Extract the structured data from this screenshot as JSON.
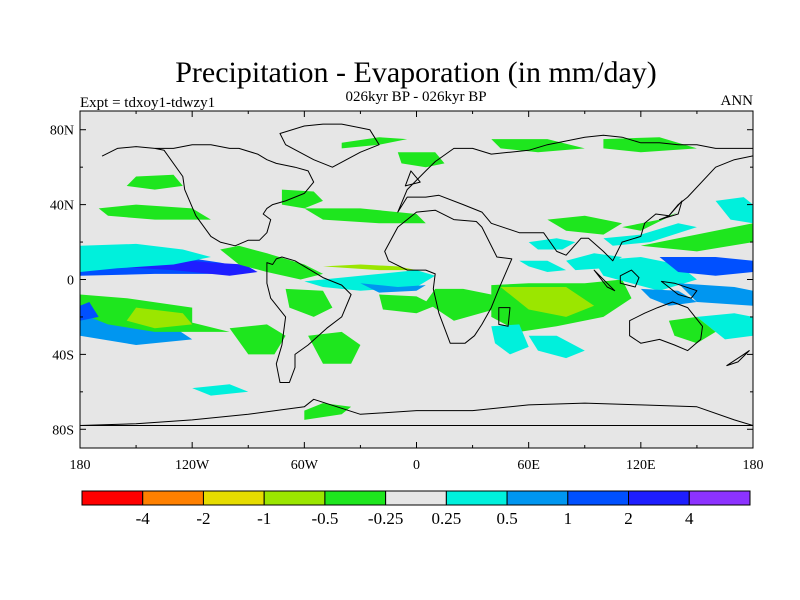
{
  "title": "Precipitation - Evaporation (in mm/day)",
  "left_subtitle": "Expt = tdxoy1-tdwzy1",
  "center_subtitle": "026kyr BP - 026kyr BP",
  "right_subtitle": "ANN",
  "colors": {
    "land": "#e6e6e6",
    "coast": "#000000",
    "bins": [
      "#ff0000",
      "#ff8000",
      "#e6dc00",
      "#9be600",
      "#1ee61e",
      "#e6e6e6",
      "#00f0dc",
      "#0096f0",
      "#0050ff",
      "#1e1eff",
      "#8c32ff"
    ]
  },
  "chart_data": {
    "type": "map",
    "projection": "cylindrical-equidistant",
    "variable": "Precipitation - Evaporation",
    "units": "mm/day",
    "lon_range": [
      -180,
      180
    ],
    "lat_range": [
      -90,
      90
    ],
    "x_ticks": [
      {
        "value": -180,
        "label": "180"
      },
      {
        "value": -120,
        "label": "120W"
      },
      {
        "value": -60,
        "label": "60W"
      },
      {
        "value": 0,
        "label": "0"
      },
      {
        "value": 60,
        "label": "60E"
      },
      {
        "value": 120,
        "label": "120E"
      },
      {
        "value": 180,
        "label": "180"
      }
    ],
    "y_ticks": [
      {
        "value": 80,
        "label": "80N"
      },
      {
        "value": 40,
        "label": "40N"
      },
      {
        "value": 0,
        "label": "0"
      },
      {
        "value": -40,
        "label": "40S"
      },
      {
        "value": -80,
        "label": "80S"
      }
    ],
    "colorbar": {
      "levels": [
        "-4",
        "-2",
        "-1",
        "-0.5",
        "-0.25",
        "0.25",
        "0.5",
        "1",
        "2",
        "4"
      ]
    },
    "regions": [
      {
        "lon": [
          -180,
          -145,
          -125,
          -105,
          -90,
          -110,
          -140,
          -180
        ],
        "lat": [
          14,
          15,
          12,
          9,
          6,
          3,
          3,
          2
        ],
        "bin": 8
      },
      {
        "lon": [
          -180,
          -130,
          -110,
          -92,
          -85,
          -100,
          -130,
          -180
        ],
        "lat": [
          12,
          11,
          9,
          8,
          4,
          2,
          5,
          8
        ],
        "bin": 9
      },
      {
        "lon": [
          -180,
          -150,
          -125,
          -110,
          -130,
          -160,
          -180
        ],
        "lat": [
          18,
          19,
          16,
          12,
          8,
          6,
          4
        ],
        "bin": 6
      },
      {
        "lon": [
          -180,
          -160,
          -135,
          -120,
          -150,
          -180
        ],
        "lat": [
          -10,
          -14,
          -22,
          -32,
          -35,
          -30
        ],
        "bin": 7
      },
      {
        "lon": [
          -180,
          -155,
          -120,
          -120,
          -100,
          -140,
          -165,
          -180
        ],
        "lat": [
          -8,
          -10,
          -15,
          -23,
          -28,
          -28,
          -24,
          -18
        ],
        "bin": 4
      },
      {
        "lon": [
          -150,
          -125,
          -120,
          -140,
          -155
        ],
        "lat": [
          -15,
          -18,
          -24,
          -26,
          -22
        ],
        "bin": 3
      },
      {
        "lon": [
          -105,
          -95,
          -80,
          -60,
          -50,
          -62,
          -80,
          -95
        ],
        "lat": [
          16,
          18,
          14,
          8,
          3,
          0,
          4,
          8
        ],
        "bin": 4
      },
      {
        "lon": [
          -100,
          -80,
          -70,
          -76,
          -90
        ],
        "lat": [
          -26,
          -24,
          -30,
          -40,
          -40
        ],
        "bin": 4
      },
      {
        "lon": [
          -70,
          -50,
          -45,
          -55,
          -68
        ],
        "lat": [
          -5,
          -6,
          -15,
          -20,
          -15
        ],
        "bin": 4
      },
      {
        "lon": [
          -58,
          -40,
          -30,
          -35,
          -50
        ],
        "lat": [
          -30,
          -28,
          -35,
          -45,
          -45
        ],
        "bin": 4
      },
      {
        "lon": [
          -60,
          -30,
          0,
          10,
          0,
          -30,
          -50
        ],
        "lat": [
          -1,
          2,
          5,
          2,
          -4,
          -6,
          -4
        ],
        "bin": 6
      },
      {
        "lon": [
          -30,
          -10,
          5,
          0,
          -20
        ],
        "lat": [
          -2,
          -4,
          -3,
          -6,
          -7
        ],
        "bin": 7
      },
      {
        "lon": [
          -50,
          -30,
          -10,
          0,
          -20
        ],
        "lat": [
          7,
          8,
          7,
          5,
          5
        ],
        "bin": 3
      },
      {
        "lon": [
          -170,
          -150,
          -120,
          -110,
          -140,
          -165
        ],
        "lat": [
          38,
          40,
          38,
          32,
          32,
          34
        ],
        "bin": 4
      },
      {
        "lon": [
          -60,
          -30,
          0,
          5,
          -20,
          -50
        ],
        "lat": [
          38,
          38,
          35,
          30,
          30,
          32
        ],
        "bin": 4
      },
      {
        "lon": [
          -72,
          -55,
          -50,
          -60,
          -72
        ],
        "lat": [
          48,
          47,
          42,
          38,
          40
        ],
        "bin": 4
      },
      {
        "lon": [
          -20,
          0,
          10,
          0,
          -18
        ],
        "lat": [
          -8,
          -9,
          -14,
          -18,
          -16
        ],
        "bin": 4
      },
      {
        "lon": [
          -10,
          10,
          15,
          5,
          -8
        ],
        "lat": [
          68,
          68,
          62,
          60,
          62
        ],
        "bin": 4
      },
      {
        "lon": [
          10,
          25,
          40,
          45,
          20,
          5
        ],
        "lat": [
          -5,
          -5,
          -8,
          -15,
          -22,
          -12
        ],
        "bin": 4
      },
      {
        "lon": [
          40,
          60,
          90,
          110,
          115,
          100,
          75,
          55,
          40
        ],
        "lat": [
          -3,
          -2,
          -2,
          0,
          -10,
          -20,
          -25,
          -28,
          -20
        ],
        "bin": 4
      },
      {
        "lon": [
          45,
          80,
          95,
          80,
          60
        ],
        "lat": [
          -4,
          -4,
          -14,
          -20,
          -16
        ],
        "bin": 3
      },
      {
        "lon": [
          40,
          55,
          60,
          50,
          42
        ],
        "lat": [
          -25,
          -24,
          -36,
          -40,
          -34
        ],
        "bin": 6
      },
      {
        "lon": [
          60,
          75,
          90,
          80,
          65
        ],
        "lat": [
          -30,
          -30,
          -38,
          -42,
          -38
        ],
        "bin": 6
      },
      {
        "lon": [
          55,
          70,
          80,
          70,
          60
        ],
        "lat": [
          10,
          10,
          5,
          4,
          7
        ],
        "bin": 6
      },
      {
        "lon": [
          80,
          95,
          110,
          100,
          85
        ],
        "lat": [
          10,
          14,
          12,
          6,
          5
        ],
        "bin": 6
      },
      {
        "lon": [
          60,
          75,
          85,
          78,
          65
        ],
        "lat": [
          20,
          22,
          20,
          16,
          16
        ],
        "bin": 6
      },
      {
        "lon": [
          70,
          90,
          110,
          100,
          80
        ],
        "lat": [
          32,
          34,
          30,
          24,
          26
        ],
        "bin": 4
      },
      {
        "lon": [
          100,
          120,
          140,
          150,
          125,
          105
        ],
        "lat": [
          22,
          24,
          30,
          28,
          20,
          18
        ],
        "bin": 6
      },
      {
        "lon": [
          110,
          130,
          150,
          140,
          120
        ],
        "lat": [
          28,
          32,
          40,
          36,
          26
        ],
        "bin": 4
      },
      {
        "lon": [
          120,
          140,
          160,
          180,
          180,
          150
        ],
        "lat": [
          18,
          22,
          26,
          30,
          20,
          15
        ],
        "bin": 4
      },
      {
        "lon": [
          95,
          120,
          140,
          150,
          130,
          100
        ],
        "lat": [
          10,
          12,
          8,
          0,
          -6,
          2
        ],
        "bin": 6
      },
      {
        "lon": [
          130,
          160,
          180,
          180,
          160,
          140
        ],
        "lat": [
          12,
          12,
          10,
          4,
          2,
          4
        ],
        "bin": 8
      },
      {
        "lon": [
          140,
          170,
          180,
          180,
          150
        ],
        "lat": [
          -2,
          -4,
          -6,
          -14,
          -12
        ],
        "bin": 7
      },
      {
        "lon": [
          120,
          140,
          150,
          135,
          125
        ],
        "lat": [
          -5,
          -6,
          -12,
          -14,
          -10
        ],
        "bin": 7
      },
      {
        "lon": [
          150,
          170,
          180,
          180,
          165
        ],
        "lat": [
          -20,
          -18,
          -20,
          -30,
          -32
        ],
        "bin": 6
      },
      {
        "lon": [
          135,
          150,
          160,
          150,
          138
        ],
        "lat": [
          -22,
          -20,
          -28,
          -34,
          -30
        ],
        "bin": 4
      },
      {
        "lon": [
          160,
          175,
          180,
          180,
          168
        ],
        "lat": [
          42,
          44,
          40,
          30,
          32
        ],
        "bin": 6
      },
      {
        "lon": [
          -150,
          -130,
          -125,
          -140,
          -155
        ],
        "lat": [
          55,
          56,
          50,
          48,
          50
        ],
        "bin": 4
      },
      {
        "lon": [
          -40,
          -20,
          -5,
          -20,
          -40
        ],
        "lat": [
          70,
          72,
          75,
          76,
          73
        ],
        "bin": 4
      },
      {
        "lon": [
          40,
          70,
          90,
          65,
          45
        ],
        "lat": [
          75,
          75,
          70,
          68,
          70
        ],
        "bin": 4
      },
      {
        "lon": [
          100,
          130,
          150,
          120,
          100
        ],
        "lat": [
          75,
          76,
          70,
          68,
          70
        ],
        "bin": 4
      },
      {
        "lon": [
          -60,
          -40,
          -35,
          -50,
          -60
        ],
        "lat": [
          -75,
          -72,
          -68,
          -66,
          -70
        ],
        "bin": 4
      },
      {
        "lon": [
          -120,
          -100,
          -90,
          -110
        ],
        "lat": [
          -58,
          -56,
          -60,
          -62
        ],
        "bin": 6
      },
      {
        "lon": [
          -180,
          -175,
          -170,
          -180
        ],
        "lat": [
          -14,
          -12,
          -20,
          -22
        ],
        "bin": 8
      }
    ],
    "coastlines": [
      {
        "lon": [
          -168,
          -160,
          -150,
          -140,
          -135,
          -125,
          -124,
          -118,
          -110,
          -105,
          -97,
          -90,
          -84,
          -80,
          -78,
          -82,
          -80,
          -77,
          -70,
          -65,
          -60,
          -55,
          -58,
          -65,
          -75,
          -80,
          -85,
          -95,
          -100,
          -110,
          -120,
          -130,
          -140,
          -150,
          -160,
          -168
        ],
        "lat": [
          66,
          70,
          71,
          70,
          69,
          55,
          48,
          34,
          23,
          20,
          18,
          21,
          21,
          25,
          32,
          35,
          38,
          40,
          42,
          44,
          46,
          52,
          58,
          60,
          62,
          64,
          67,
          70,
          70,
          72,
          72,
          70,
          70,
          71,
          70,
          66
        ]
      },
      {
        "lon": [
          -80,
          -77,
          -75,
          -72,
          -65,
          -50,
          -40,
          -35,
          -40,
          -48,
          -58,
          -65,
          -65,
          -68,
          -73,
          -75,
          -72,
          -70,
          -78,
          -80
        ],
        "lat": [
          9,
          8,
          11,
          12,
          10,
          1,
          -3,
          -8,
          -20,
          -26,
          -35,
          -40,
          -47,
          -55,
          -55,
          -45,
          -35,
          -20,
          -10,
          -2
        ]
      },
      {
        "lon": [
          -73,
          -60,
          -50,
          -40,
          -25,
          -20,
          -30,
          -45,
          -55,
          -70,
          -73
        ],
        "lat": [
          78,
          82,
          83,
          83,
          80,
          72,
          68,
          60,
          64,
          72,
          78
        ]
      },
      {
        "lon": [
          -17,
          -10,
          0,
          10,
          20,
          32,
          35,
          43,
          51,
          44,
          40,
          35,
          31,
          26,
          18,
          12,
          9,
          10,
          5,
          -5,
          -15,
          -17
        ],
        "lat": [
          15,
          28,
          36,
          37,
          32,
          31,
          28,
          12,
          11,
          -5,
          -15,
          -24,
          -30,
          -34,
          -34,
          -18,
          -5,
          3,
          5,
          5,
          10,
          15
        ]
      },
      {
        "lon": [
          -10,
          -5,
          5,
          12,
          25,
          35,
          40,
          55,
          60,
          68,
          75,
          80,
          88,
          92,
          100,
          105,
          110,
          120,
          122,
          128,
          135,
          140,
          145,
          160,
          170,
          180,
          180,
          170,
          160,
          150,
          140,
          130,
          120,
          110,
          100,
          90,
          80,
          70,
          60,
          50,
          40,
          30,
          20,
          10,
          5,
          -5,
          -10
        ],
        "lat": [
          36,
          44,
          44,
          45,
          40,
          36,
          30,
          25,
          25,
          25,
          15,
          13,
          22,
          22,
          15,
          10,
          20,
          23,
          30,
          35,
          34,
          40,
          44,
          60,
          64,
          66,
          70,
          70,
          70,
          72,
          72,
          73,
          73,
          76,
          77,
          76,
          74,
          72,
          69,
          68,
          67,
          70,
          70,
          63,
          58,
          48,
          36
        ]
      },
      {
        "lon": [
          114,
          122,
          129,
          137,
          145,
          153,
          152,
          145,
          138,
          130,
          120,
          114
        ],
        "lat": [
          -22,
          -18,
          -15,
          -12,
          -15,
          -25,
          -32,
          -38,
          -35,
          -32,
          -34,
          -30
        ]
      },
      {
        "lon": [
          -180,
          -150,
          -120,
          -90,
          -60,
          -55,
          -30,
          0,
          30,
          60,
          90,
          120,
          150,
          170,
          180
        ],
        "lat": [
          -78,
          -77,
          -75,
          -72,
          -68,
          -64,
          -72,
          -70,
          -70,
          -67,
          -66,
          -67,
          -68,
          -75,
          -78
        ]
      },
      {
        "lon": [
          95,
          100,
          106,
          102,
          95
        ],
        "lat": [
          5,
          0,
          -6,
          -4,
          5
        ]
      },
      {
        "lon": [
          109,
          115,
          119,
          117,
          109
        ],
        "lat": [
          2,
          5,
          1,
          -4,
          -2
        ]
      },
      {
        "lon": [
          131,
          138,
          150,
          147,
          140,
          131
        ],
        "lat": [
          -1,
          -2,
          -6,
          -10,
          -8,
          -1
        ]
      },
      {
        "lon": [
          44,
          50,
          49,
          44
        ],
        "lat": [
          -15,
          -15,
          -25,
          -24
        ]
      },
      {
        "lon": [
          166,
          175,
          178,
          172,
          166
        ],
        "lat": [
          -46,
          -40,
          -38,
          -44,
          -46
        ]
      },
      {
        "lon": [
          -6,
          2,
          -3,
          -6
        ],
        "lat": [
          50,
          52,
          58,
          50
        ]
      },
      {
        "lon": [
          130,
          140,
          142,
          135,
          130
        ],
        "lat": [
          32,
          35,
          42,
          34,
          32
        ]
      }
    ]
  }
}
